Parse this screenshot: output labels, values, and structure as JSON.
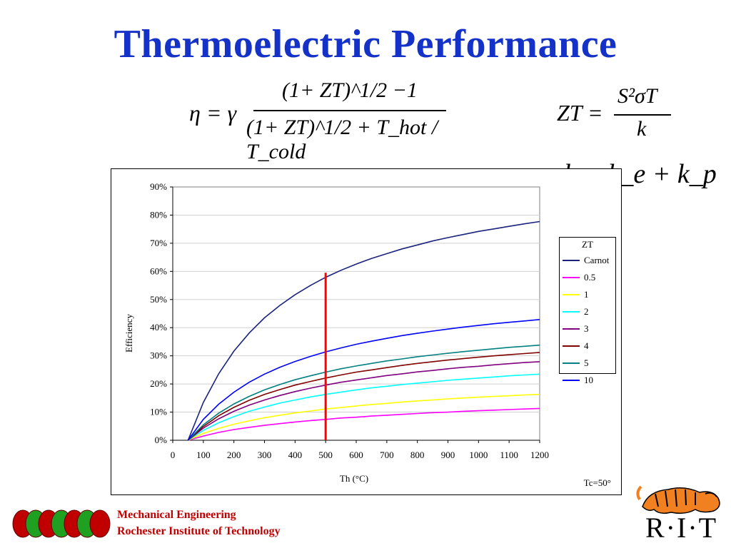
{
  "slide": {
    "title": "Thermoelectric Performance",
    "footer_line1": "Mechanical Engineering",
    "footer_line2": "Rochester Institute of Technology",
    "logo_text": "R·I·T"
  },
  "formulas": {
    "efficiency_lhs": "η = γ",
    "efficiency_numerator": "(1+ ZT)^1/2 −1",
    "efficiency_denominator": "(1+ ZT)^1/2 + T_hot / T_cold",
    "zt_lhs": "ZT =",
    "zt_numerator": "S²σT",
    "zt_denominator": "k",
    "k_relation": "k = k_e + k_p"
  },
  "chart_data": {
    "type": "line",
    "xlabel": "Th (°C)",
    "ylabel": "Efficiency",
    "xlim": [
      0,
      1200
    ],
    "ylim": [
      0,
      0.9
    ],
    "x_ticks": [
      "0",
      "100",
      "200",
      "300",
      "400",
      "500",
      "600",
      "700",
      "800",
      "900",
      "1000",
      "1100",
      "1200"
    ],
    "y_ticks": [
      "0%",
      "10%",
      "20%",
      "30%",
      "40%",
      "50%",
      "60%",
      "70%",
      "80%",
      "90%"
    ],
    "legend_title": "ZT",
    "legend_position": "right",
    "note": "Tc=50°",
    "x": [
      50,
      100,
      150,
      200,
      250,
      300,
      350,
      400,
      450,
      500,
      550,
      600,
      650,
      700,
      750,
      800,
      850,
      900,
      950,
      1000,
      1050,
      1100,
      1150,
      1200
    ],
    "series": [
      {
        "name": "Carnot",
        "color": "#1a237e",
        "values": [
          0.0,
          0.134,
          0.236,
          0.317,
          0.381,
          0.435,
          0.479,
          0.517,
          0.55,
          0.579,
          0.604,
          0.626,
          0.646,
          0.663,
          0.68,
          0.694,
          0.708,
          0.72,
          0.731,
          0.742,
          0.751,
          0.76,
          0.769,
          0.777
        ]
      },
      {
        "name": "0.5",
        "color": "#ff00ff",
        "values": [
          0.0,
          0.015,
          0.028,
          0.038,
          0.046,
          0.053,
          0.059,
          0.065,
          0.07,
          0.074,
          0.079,
          0.082,
          0.086,
          0.089,
          0.092,
          0.095,
          0.098,
          0.1,
          0.103,
          0.105,
          0.107,
          0.109,
          0.111,
          0.113
        ]
      },
      {
        "name": "1",
        "color": "#ffff00",
        "values": [
          0.0,
          0.024,
          0.042,
          0.057,
          0.069,
          0.08,
          0.089,
          0.097,
          0.104,
          0.111,
          0.116,
          0.122,
          0.127,
          0.131,
          0.136,
          0.14,
          0.143,
          0.147,
          0.15,
          0.153,
          0.156,
          0.158,
          0.161,
          0.163
        ]
      },
      {
        "name": "2",
        "color": "#00ffff",
        "values": [
          0.0,
          0.035,
          0.062,
          0.084,
          0.103,
          0.118,
          0.132,
          0.143,
          0.154,
          0.163,
          0.171,
          0.179,
          0.186,
          0.192,
          0.198,
          0.203,
          0.208,
          0.213,
          0.217,
          0.221,
          0.225,
          0.229,
          0.232,
          0.235
        ]
      },
      {
        "name": "3",
        "color": "#800080",
        "values": [
          0.0,
          0.043,
          0.076,
          0.103,
          0.125,
          0.143,
          0.159,
          0.173,
          0.185,
          0.196,
          0.206,
          0.214,
          0.222,
          0.23,
          0.236,
          0.243,
          0.248,
          0.254,
          0.259,
          0.263,
          0.268,
          0.272,
          0.276,
          0.279
        ]
      },
      {
        "name": "4",
        "color": "#800000",
        "values": [
          0.0,
          0.049,
          0.087,
          0.117,
          0.142,
          0.163,
          0.18,
          0.196,
          0.209,
          0.221,
          0.232,
          0.242,
          0.25,
          0.258,
          0.266,
          0.273,
          0.279,
          0.285,
          0.29,
          0.295,
          0.3,
          0.304,
          0.308,
          0.312
        ]
      },
      {
        "name": "5",
        "color": "#008080",
        "values": [
          0.0,
          0.055,
          0.096,
          0.129,
          0.156,
          0.179,
          0.198,
          0.215,
          0.229,
          0.242,
          0.254,
          0.264,
          0.273,
          0.282,
          0.289,
          0.297,
          0.303,
          0.309,
          0.315,
          0.32,
          0.325,
          0.33,
          0.334,
          0.338
        ]
      },
      {
        "name": "10",
        "color": "#0000ff",
        "values": [
          0.0,
          0.074,
          0.128,
          0.171,
          0.206,
          0.235,
          0.259,
          0.28,
          0.298,
          0.314,
          0.328,
          0.341,
          0.352,
          0.362,
          0.372,
          0.38,
          0.388,
          0.395,
          0.402,
          0.408,
          0.414,
          0.419,
          0.424,
          0.429
        ]
      }
    ],
    "marker_line": {
      "x": 500,
      "y_from": 0.0,
      "y_to": 0.595,
      "color": "#ff0000"
    }
  }
}
